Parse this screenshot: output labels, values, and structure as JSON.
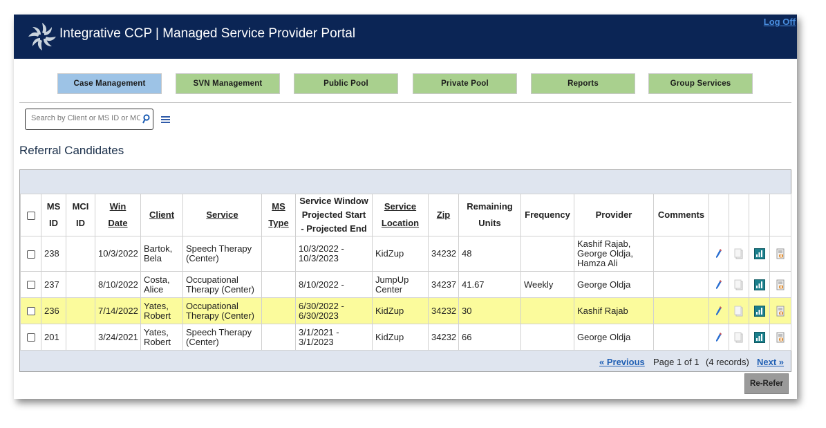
{
  "header": {
    "title": "Integrative CCP | Managed Service Provider Portal",
    "logoff": "Log Off"
  },
  "nav": [
    {
      "label": "Case Management",
      "active": true
    },
    {
      "label": "SVN Management"
    },
    {
      "label": "Public Pool"
    },
    {
      "label": "Private Pool"
    },
    {
      "label": "Reports"
    },
    {
      "label": "Group Services"
    }
  ],
  "search": {
    "placeholder": "Search by Client or MS ID or MCI ID"
  },
  "section_title": "Referral Candidates",
  "table": {
    "headers": {
      "ms_id_1": "MS",
      "ms_id_2": "ID",
      "mci_id_1": "MCI",
      "mci_id_2": "ID",
      "win_date_1": "Win",
      "win_date_2": "Date",
      "client": "Client",
      "service": "Service",
      "ms_type_1": "MS",
      "ms_type_2": "Type",
      "service_window_1": "Service Window",
      "service_window_2": "Projected Start",
      "service_window_3": "- Projected End",
      "service_location_1": "Service",
      "service_location_2": "Location",
      "zip": "Zip",
      "remaining_units_1": "Remaining",
      "remaining_units_2": "Units",
      "frequency": "Frequency",
      "provider": "Provider",
      "comments": "Comments"
    },
    "rows": [
      {
        "ms_id": "238",
        "mci_id": "",
        "win_date": "10/3/2022",
        "client_1": "Bartok,",
        "client_2": "Bela",
        "service_1": "Speech Therapy",
        "service_2": "(Center)",
        "ms_type": "",
        "window_1": "10/3/2022 -",
        "window_2": "10/3/2023",
        "location_1": "KidZup",
        "location_2": "",
        "zip": "34232",
        "units": "48",
        "frequency": "",
        "provider_1": "Kashif Rajab,",
        "provider_2": "George Oldja,",
        "provider_3": "Hamza Ali",
        "comments": ""
      },
      {
        "ms_id": "237",
        "mci_id": "",
        "win_date": "8/10/2022",
        "client_1": "Costa,",
        "client_2": "Alice",
        "service_1": "Occupational",
        "service_2": "Therapy (Center)",
        "ms_type": "",
        "window_1": "8/10/2022 -",
        "window_2": "",
        "location_1": "JumpUp",
        "location_2": "Center",
        "zip": "34237",
        "units": "41.67",
        "frequency": "Weekly",
        "provider_1": "George Oldja",
        "provider_2": "",
        "provider_3": "",
        "comments": ""
      },
      {
        "ms_id": "236",
        "mci_id": "",
        "win_date": "7/14/2022",
        "client_1": "Yates,",
        "client_2": "Robert",
        "service_1": "Occupational",
        "service_2": "Therapy (Center)",
        "ms_type": "",
        "window_1": "6/30/2022 -",
        "window_2": "6/30/2023",
        "location_1": "KidZup",
        "location_2": "",
        "zip": "34232",
        "units": "30",
        "frequency": "",
        "provider_1": "Kashif Rajab",
        "provider_2": "",
        "provider_3": "",
        "comments": "",
        "highlighted": true
      },
      {
        "ms_id": "201",
        "mci_id": "",
        "win_date": "3/24/2021",
        "client_1": "Yates,",
        "client_2": "Robert",
        "service_1": "Speech Therapy",
        "service_2": "(Center)",
        "ms_type": "",
        "window_1": "3/1/2021 -",
        "window_2": "3/1/2023",
        "location_1": "KidZup",
        "location_2": "",
        "zip": "34232",
        "units": "66",
        "frequency": "",
        "provider_1": "George Oldja",
        "provider_2": "",
        "provider_3": "",
        "comments": ""
      }
    ],
    "row_icons": [
      "pencil-edit-icon",
      "copy-document-icon",
      "chart-report-icon",
      "document-attach-icon"
    ]
  },
  "pager": {
    "previous": "« Previous",
    "page_info": "Page 1 of 1",
    "records": "(4 records)",
    "next": "Next »"
  },
  "rerefer_label": "Re-Refer",
  "colors": {
    "header_bg": "#0b2555",
    "nav_green": "#a9d08e",
    "nav_active": "#9dc3e6",
    "highlight_row": "#fbfb9c",
    "link_blue": "#1f5fb4"
  }
}
